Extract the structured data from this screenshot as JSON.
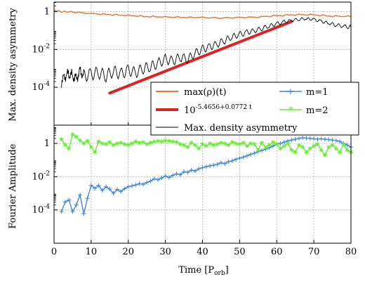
{
  "chart_data": [
    {
      "type": "line",
      "ylabel": "Max. density asymmetry",
      "xlim": [
        0,
        80
      ],
      "ylim_log10": [
        -6,
        0.5
      ],
      "y_scale": "log",
      "y_ticks": [
        {
          "value": 1,
          "exp": ""
        },
        {
          "value": 0.01,
          "exp": "-2"
        },
        {
          "value": 0.0001,
          "exp": "-4"
        }
      ],
      "grid": true,
      "legend": {
        "placement": "bottom-right",
        "items": [
          {
            "label": "max(ρ)(t)",
            "color": "#ee7733"
          },
          {
            "label_base": "10",
            "label_exp": "-5.4656+0.0772 t",
            "color": "#dd2222"
          },
          {
            "label": "Max. density asymmetry",
            "color": "#000000"
          }
        ]
      },
      "series": [
        {
          "name": "max(ρ)(t)",
          "color": "#ee7733",
          "x": [
            0,
            2,
            5,
            10,
            15,
            20,
            25,
            30,
            35,
            40,
            45,
            50,
            55,
            60,
            65,
            70,
            75,
            80
          ],
          "y": [
            1.15,
            1.0,
            0.95,
            0.78,
            0.7,
            0.62,
            0.55,
            0.52,
            0.5,
            0.48,
            0.46,
            0.48,
            0.52,
            0.6,
            0.7,
            0.66,
            0.58,
            0.55
          ]
        },
        {
          "name": "10^(-5.4656+0.0772 t)",
          "color": "#dd2222",
          "fit": {
            "a": -5.4656,
            "b": 0.0772,
            "x_range": [
              15,
              64
            ]
          }
        },
        {
          "name": "Max. density asymmetry",
          "color": "#000000",
          "x": [
            2,
            3,
            4,
            5,
            6,
            7,
            8,
            10,
            12,
            14,
            16,
            18,
            20,
            22,
            24,
            26,
            28,
            30,
            32,
            34,
            36,
            38,
            40,
            42,
            44,
            46,
            48,
            50,
            52,
            54,
            56,
            58,
            60,
            62,
            64,
            66,
            68,
            70,
            72,
            74,
            76,
            78,
            80
          ],
          "y": [
            0.0002,
            0.0004,
            0.0005,
            0.0004,
            0.0003,
            0.0008,
            0.0004,
            0.0005,
            0.0006,
            0.0004,
            0.0007,
            0.0005,
            0.0008,
            0.0006,
            0.001,
            0.0012,
            0.0018,
            0.003,
            0.0025,
            0.004,
            0.003,
            0.006,
            0.01,
            0.014,
            0.02,
            0.03,
            0.045,
            0.06,
            0.08,
            0.1,
            0.13,
            0.17,
            0.22,
            0.28,
            0.35,
            0.4,
            0.42,
            0.38,
            0.3,
            0.24,
            0.2,
            0.17,
            0.15
          ]
        }
      ]
    },
    {
      "type": "line",
      "xlabel": "Time [P",
      "xlabel_sub": "orb",
      "xlabel_close": "]",
      "ylabel": "Fourier Amplitude",
      "xlim": [
        0,
        80
      ],
      "x_ticks": [
        "0",
        "10",
        "20",
        "30",
        "40",
        "50",
        "60",
        "70",
        "80"
      ],
      "ylim_log10": [
        -6,
        1.1
      ],
      "y_scale": "log",
      "y_ticks": [
        {
          "value": 1,
          "exp": ""
        },
        {
          "value": 0.01,
          "exp": "-2"
        },
        {
          "value": 0.0001,
          "exp": "-4"
        }
      ],
      "grid": true,
      "legend": {
        "placement": "top-right (inside upper panel)",
        "items": [
          {
            "label": "m=1",
            "color": "#3f88d6",
            "marker": "+"
          },
          {
            "label": "m=2",
            "color": "#66ee33",
            "marker": "*"
          }
        ]
      },
      "series": [
        {
          "name": "m=1",
          "color": "#3f88d6",
          "x": [
            2,
            3,
            4,
            5,
            6,
            7,
            8,
            9,
            10,
            11,
            12,
            13,
            14,
            15,
            16,
            17,
            18,
            19,
            20,
            21,
            22,
            23,
            24,
            25,
            26,
            27,
            28,
            29,
            30,
            31,
            32,
            33,
            34,
            35,
            36,
            37,
            38,
            39,
            40,
            41,
            42,
            43,
            44,
            45,
            46,
            47,
            48,
            49,
            50,
            51,
            52,
            53,
            54,
            55,
            56,
            57,
            58,
            59,
            60,
            61,
            62,
            63,
            64,
            65,
            66,
            67,
            68,
            69,
            70,
            71,
            72,
            73,
            74,
            75,
            76,
            77,
            78,
            79,
            80
          ],
          "y": [
            8e-05,
            0.0003,
            0.0004,
            8e-05,
            0.0002,
            0.0008,
            6e-05,
            0.0005,
            0.003,
            0.002,
            0.003,
            0.0015,
            0.0025,
            0.0018,
            0.001,
            0.0017,
            0.0013,
            0.0019,
            0.0025,
            0.0028,
            0.0032,
            0.0038,
            0.0035,
            0.0045,
            0.0055,
            0.0075,
            0.0065,
            0.0085,
            0.011,
            0.009,
            0.012,
            0.015,
            0.013,
            0.02,
            0.018,
            0.025,
            0.022,
            0.03,
            0.035,
            0.04,
            0.045,
            0.05,
            0.055,
            0.07,
            0.06,
            0.08,
            0.09,
            0.11,
            0.13,
            0.15,
            0.18,
            0.22,
            0.26,
            0.32,
            0.38,
            0.45,
            0.55,
            0.7,
            0.85,
            1.0,
            1.2,
            1.4,
            1.6,
            1.8,
            2.0,
            2.2,
            2.1,
            2.0,
            1.9,
            1.8,
            1.9,
            1.8,
            1.7,
            1.6,
            1.5,
            1.3,
            1.0,
            0.8,
            0.6
          ]
        },
        {
          "name": "m=2",
          "color": "#66ee33",
          "x": [
            2,
            3,
            4,
            5,
            6,
            7,
            8,
            9,
            10,
            11,
            12,
            13,
            14,
            15,
            16,
            17,
            18,
            19,
            20,
            21,
            22,
            23,
            24,
            25,
            26,
            27,
            28,
            29,
            30,
            31,
            32,
            33,
            34,
            35,
            36,
            37,
            38,
            39,
            40,
            41,
            42,
            43,
            44,
            45,
            46,
            47,
            48,
            49,
            50,
            51,
            52,
            53,
            54,
            55,
            56,
            57,
            58,
            59,
            60,
            61,
            62,
            63,
            64,
            65,
            66,
            67,
            68,
            69,
            70,
            71,
            72,
            73,
            74,
            75,
            76,
            77,
            78,
            79,
            80
          ],
          "y": [
            1.8,
            0.8,
            0.5,
            3.5,
            2.5,
            1.5,
            1.0,
            1.4,
            0.6,
            0.3,
            1.3,
            1.0,
            0.9,
            1.2,
            0.8,
            1.0,
            1.1,
            0.9,
            0.8,
            1.0,
            1.3,
            1.1,
            1.2,
            0.9,
            1.1,
            1.3,
            1.4,
            1.3,
            1.5,
            1.4,
            1.3,
            1.2,
            0.9,
            0.8,
            0.6,
            1.1,
            0.8,
            0.5,
            0.9,
            0.7,
            1.0,
            0.8,
            0.9,
            1.1,
            1.0,
            0.8,
            1.2,
            1.0,
            0.9,
            1.1,
            0.7,
            1.0,
            0.9,
            0.4,
            1.1,
            0.6,
            0.8,
            1.2,
            0.9,
            0.5,
            0.7,
            1.0,
            0.4,
            0.3,
            0.8,
            0.6,
            0.3,
            0.5,
            0.7,
            0.9,
            0.4,
            0.2,
            0.6,
            0.8,
            0.5,
            0.3,
            0.9,
            0.4,
            0.3
          ]
        }
      ]
    }
  ]
}
